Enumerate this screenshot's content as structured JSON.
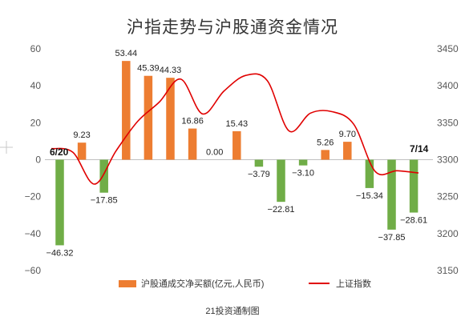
{
  "chart_data": {
    "type": "bar+line",
    "title": "沪指走势与沪股通资金情况",
    "source": "21投资通制图",
    "left_axis": {
      "min": -60,
      "max": 60,
      "ticks": [
        "60",
        "40",
        "20",
        "0",
        "−20",
        "−40",
        "−60"
      ]
    },
    "right_axis": {
      "min": 3150,
      "max": 3450,
      "ticks": [
        "3450",
        "3400",
        "3350",
        "3300",
        "3250",
        "3200",
        "3150"
      ]
    },
    "date_labels": {
      "start": "6/20",
      "end": "7/14"
    },
    "series": [
      {
        "name": "沪股通成交净买额(亿元,人民币)",
        "type": "bar",
        "values": [
          -46.32,
          9.23,
          -17.85,
          53.44,
          45.39,
          44.33,
          16.86,
          0.0,
          15.43,
          -3.79,
          -22.81,
          -3.1,
          5.26,
          9.7,
          -15.34,
          -37.85,
          -28.61
        ],
        "labels": [
          "−46.32",
          "9.23",
          "−17.85",
          "53.44",
          "45.39",
          "44.33",
          "16.86",
          "0.00",
          "15.43",
          "−3.79",
          "−22.81",
          "−3.10",
          "5.26",
          "9.70",
          "−15.34",
          "−37.85",
          "−28.61"
        ]
      },
      {
        "name": "上证指数",
        "type": "line",
        "values": [
          3315,
          3310,
          3267,
          3312,
          3352,
          3378,
          3409,
          3362,
          3393,
          3414,
          3407,
          3339,
          3363,
          3365,
          3348,
          3284,
          3285,
          3282
        ]
      }
    ],
    "colors": {
      "positive": "#ed7d31",
      "negative": "#70ad47",
      "line": "#e00000",
      "axis_text": "#595959"
    },
    "legend_position": "bottom",
    "grid": false
  }
}
